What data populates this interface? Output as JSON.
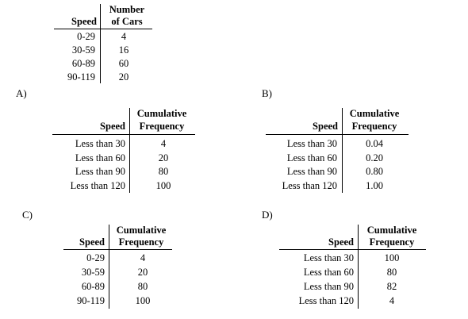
{
  "source_table": {
    "col1_header": "Speed",
    "col2_header_line1": "Number",
    "col2_header_line2": "of Cars",
    "rows": [
      {
        "speed": "0-29",
        "value": "4"
      },
      {
        "speed": "30-59",
        "value": "16"
      },
      {
        "speed": "60-89",
        "value": "60"
      },
      {
        "speed": "90-119",
        "value": "20"
      }
    ]
  },
  "options": [
    {
      "label": "A)",
      "col1_header": "Speed",
      "col2_header_line1": "Cumulative",
      "col2_header_line2": "Frequency",
      "rows": [
        {
          "speed": "Less than 30",
          "value": "4"
        },
        {
          "speed": "Less than 60",
          "value": "20"
        },
        {
          "speed": "Less than 90",
          "value": "80"
        },
        {
          "speed": "Less than 120",
          "value": "100"
        }
      ]
    },
    {
      "label": "B)",
      "col1_header": "Speed",
      "col2_header_line1": "Cumulative",
      "col2_header_line2": "Frequency",
      "rows": [
        {
          "speed": "Less than 30",
          "value": "0.04"
        },
        {
          "speed": "Less than 60",
          "value": "0.20"
        },
        {
          "speed": "Less than 90",
          "value": "0.80"
        },
        {
          "speed": "Less than 120",
          "value": "1.00"
        }
      ]
    },
    {
      "label": "C)",
      "col1_header": "Speed",
      "col2_header_line1": "Cumulative",
      "col2_header_line2": "Frequency",
      "rows": [
        {
          "speed": "0-29",
          "value": "4"
        },
        {
          "speed": "30-59",
          "value": "20"
        },
        {
          "speed": "60-89",
          "value": "80"
        },
        {
          "speed": "90-119",
          "value": "100"
        }
      ]
    },
    {
      "label": "D)",
      "col1_header": "Speed",
      "col2_header_line1": "Cumulative",
      "col2_header_line2": "Frequency",
      "rows": [
        {
          "speed": "Less than 30",
          "value": "100"
        },
        {
          "speed": "Less than 60",
          "value": "80"
        },
        {
          "speed": "Less than 90",
          "value": "82"
        },
        {
          "speed": "Less than 120",
          "value": "4"
        }
      ]
    }
  ]
}
